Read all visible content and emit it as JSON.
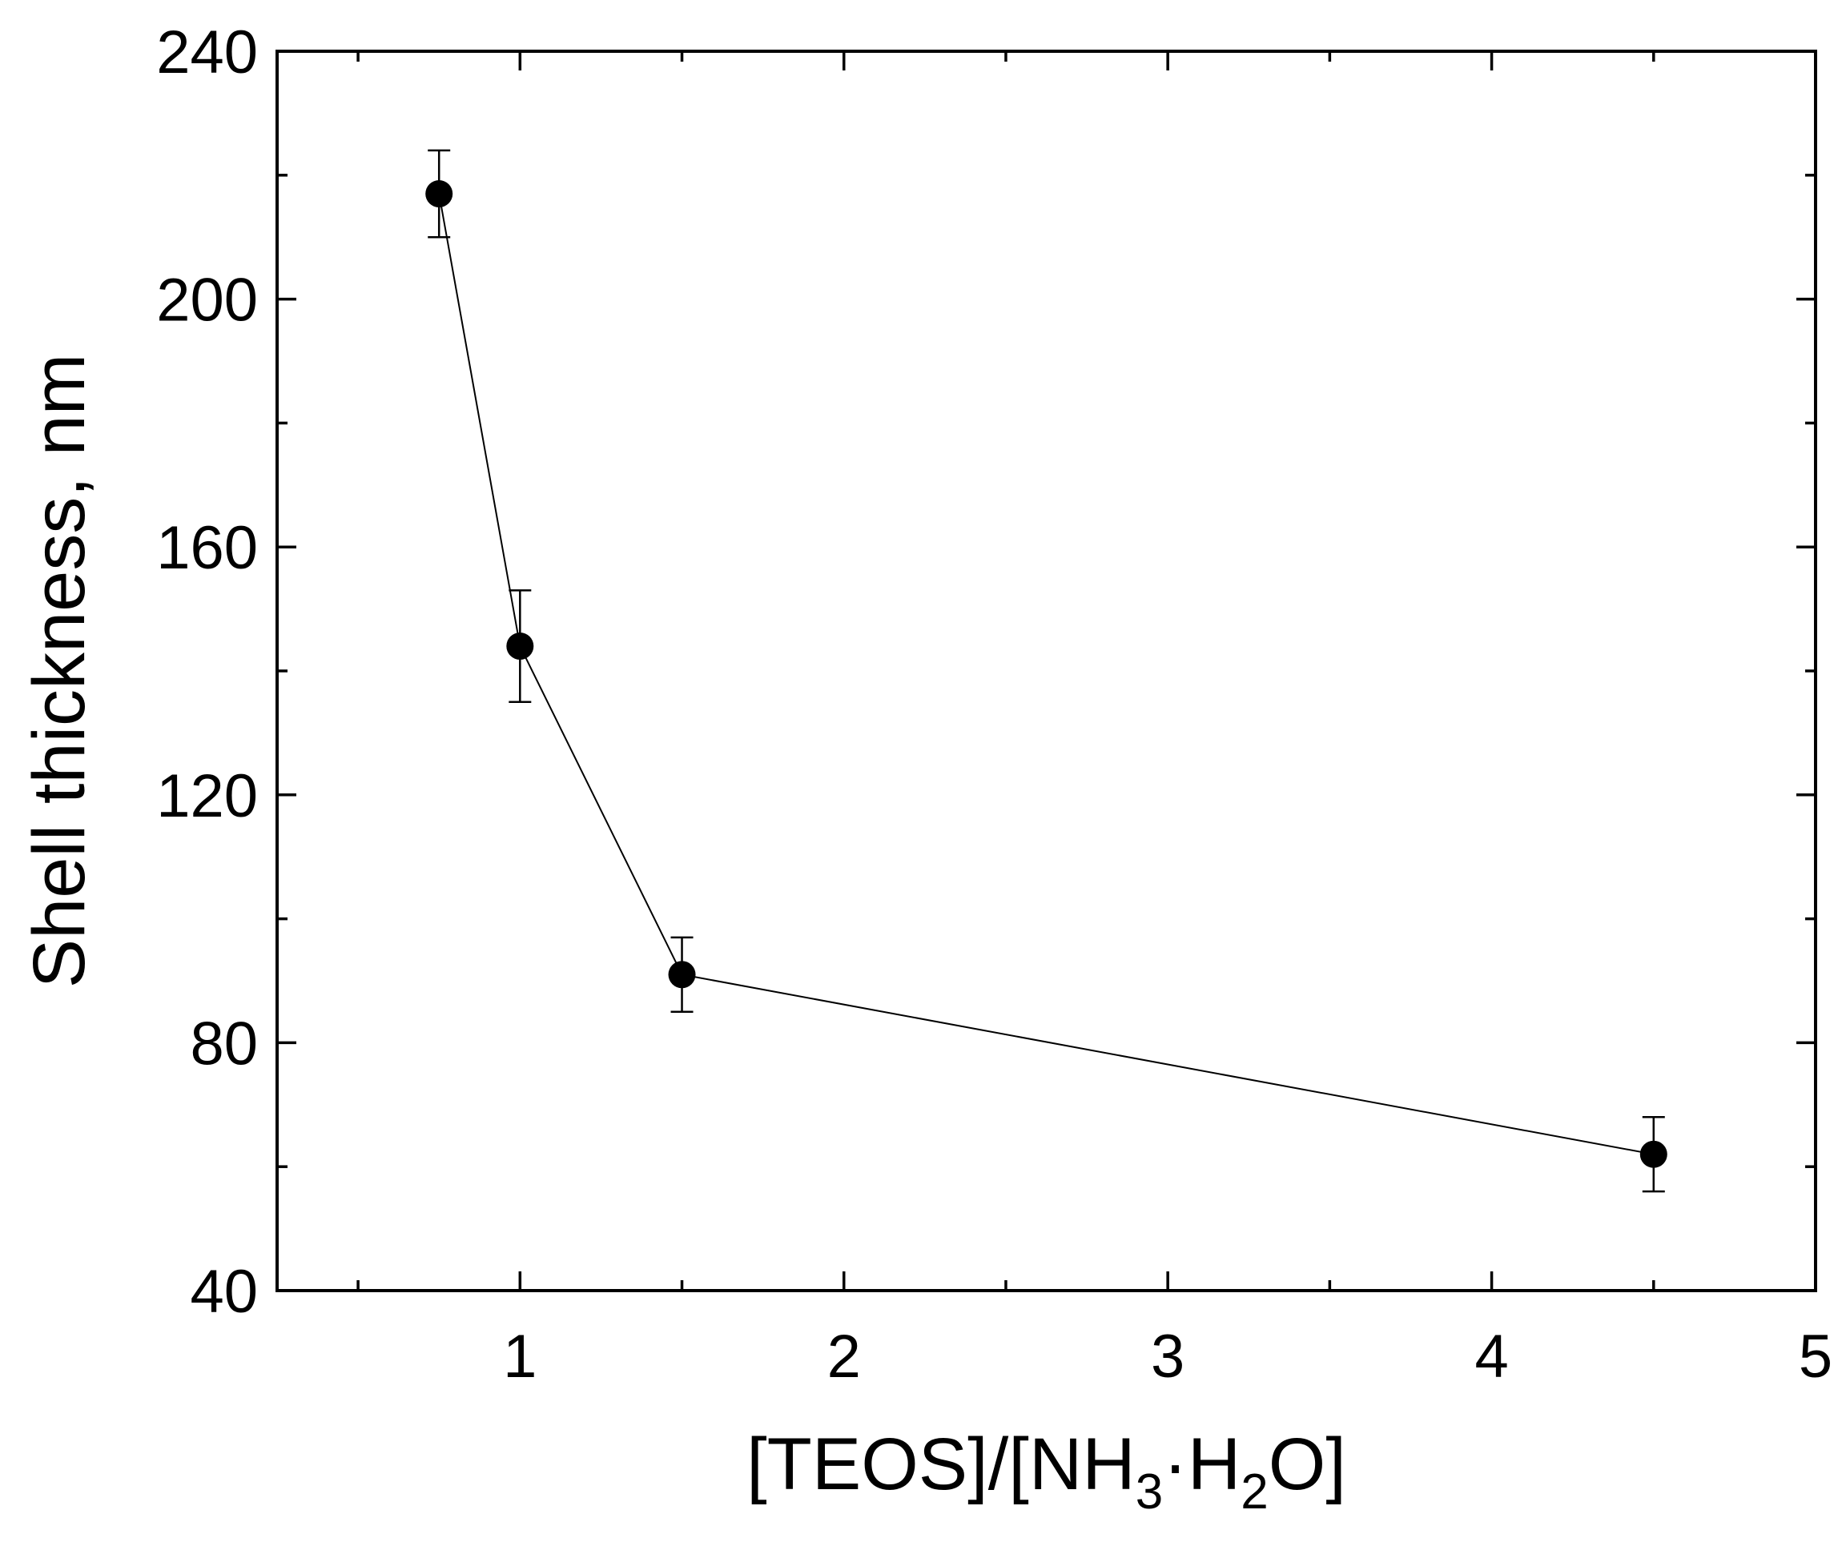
{
  "chart_data": {
    "type": "scatter",
    "xlabel": {
      "parts": [
        {
          "text": "[TEOS]/[NH"
        },
        {
          "text": "3",
          "sub": true
        },
        {
          "text": "·H"
        },
        {
          "text": "2",
          "sub": true
        },
        {
          "text": "O]"
        }
      ]
    },
    "ylabel": "Shell thickness, nm",
    "xlim": [
      0.25,
      5
    ],
    "ylim": [
      40,
      240
    ],
    "xticks": [
      1,
      2,
      3,
      4,
      5
    ],
    "xticklabels": [
      "1",
      "2",
      "3",
      "4",
      "5"
    ],
    "xminorticks": [
      0.5,
      1.5,
      2.5,
      3.5,
      4.5
    ],
    "yticks": [
      40,
      80,
      120,
      160,
      200,
      240
    ],
    "yticklabels": [
      "40",
      "80",
      "120",
      "160",
      "200",
      "240"
    ],
    "yminorticks": [
      60,
      100,
      140,
      180,
      220
    ],
    "grid": false,
    "connected": true,
    "colors": {
      "series": "#000000",
      "axis": "#000000"
    },
    "series": [
      {
        "x": [
          0.75,
          1.0,
          1.5,
          4.5
        ],
        "y": [
          217,
          144,
          91,
          62
        ],
        "err": [
          7,
          9,
          6,
          6
        ]
      }
    ]
  }
}
